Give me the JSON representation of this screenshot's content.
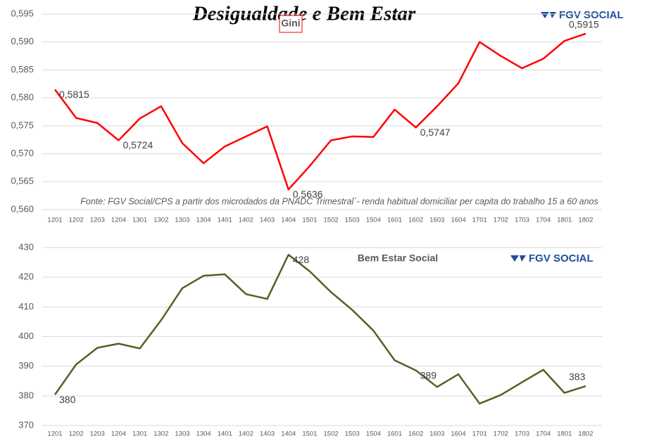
{
  "chart_data": [
    {
      "type": "line",
      "title": "Desigualdade e Bem Estar",
      "logo": "FGV SOCIAL",
      "note": "Fonte: FGV Social/CPS a partir dos microdados da PNADC Trimestral´- renda habitual domiciliar per capita do trabalho 15 a 60 anos",
      "categories": [
        "1201",
        "1202",
        "1203",
        "1204",
        "1301",
        "1302",
        "1303",
        "1304",
        "1401",
        "1402",
        "1403",
        "1404",
        "1501",
        "1502",
        "1503",
        "1504",
        "1601",
        "1602",
        "1603",
        "1604",
        "1701",
        "1702",
        "1703",
        "1704",
        "1801",
        "1802"
      ],
      "series": [
        {
          "name": "Gini",
          "color": "#ff0000",
          "values": [
            0.5815,
            0.5764,
            0.5755,
            0.5724,
            0.5763,
            0.5785,
            0.5719,
            0.5683,
            0.5713,
            0.5731,
            0.5749,
            0.5636,
            0.5678,
            0.5724,
            0.5731,
            0.573,
            0.5779,
            0.5747,
            0.5785,
            0.5826,
            0.59,
            0.5875,
            0.5853,
            0.587,
            0.5902,
            0.5915
          ],
          "value_labels": [
            "0,5815",
            null,
            null,
            "0,5724",
            null,
            null,
            null,
            null,
            null,
            null,
            null,
            "0,5636",
            null,
            null,
            null,
            null,
            null,
            "0,5747",
            null,
            null,
            null,
            null,
            null,
            null,
            null,
            "0,5915"
          ]
        }
      ],
      "ylim": [
        0.56,
        0.595
      ],
      "yticks": [
        {
          "value": 0.56,
          "label": "0,560"
        },
        {
          "value": 0.565,
          "label": "0,565"
        },
        {
          "value": 0.57,
          "label": "0,570"
        },
        {
          "value": 0.575,
          "label": "0,575"
        },
        {
          "value": 0.58,
          "label": "0,580"
        },
        {
          "value": 0.585,
          "label": "0,585"
        },
        {
          "value": 0.59,
          "label": "0,590"
        },
        {
          "value": 0.595,
          "label": "0,595"
        }
      ],
      "grid": true
    },
    {
      "type": "line",
      "title": "Bem Estar Social",
      "logo": "FGV SOCIAL",
      "categories": [
        "1201",
        "1202",
        "1203",
        "1204",
        "1301",
        "1302",
        "1303",
        "1304",
        "1401",
        "1402",
        "1403",
        "1404",
        "1501",
        "1502",
        "1503",
        "1504",
        "1601",
        "1602",
        "1603",
        "1604",
        "1701",
        "1702",
        "1703",
        "1704",
        "1801",
        "1802"
      ],
      "series": [
        {
          "name": "Bem Estar Social",
          "color": "#4f6228",
          "values": [
            380.4,
            390.6,
            396.2,
            397.6,
            396.0,
            405.5,
            416.3,
            420.5,
            421.0,
            414.3,
            412.7,
            427.6,
            422.0,
            415.0,
            409.0,
            402.0,
            392.0,
            388.6,
            383.0,
            387.3,
            377.4,
            380.3,
            384.6,
            388.8,
            381.0,
            383.3
          ],
          "value_labels": [
            "380",
            null,
            null,
            null,
            null,
            null,
            null,
            null,
            null,
            null,
            null,
            "428",
            null,
            null,
            null,
            null,
            null,
            "389",
            null,
            null,
            null,
            null,
            null,
            null,
            null,
            "383"
          ]
        }
      ],
      "ylim": [
        370,
        430
      ],
      "yticks": [
        370,
        380,
        390,
        400,
        410,
        420,
        430
      ],
      "grid": true
    }
  ]
}
